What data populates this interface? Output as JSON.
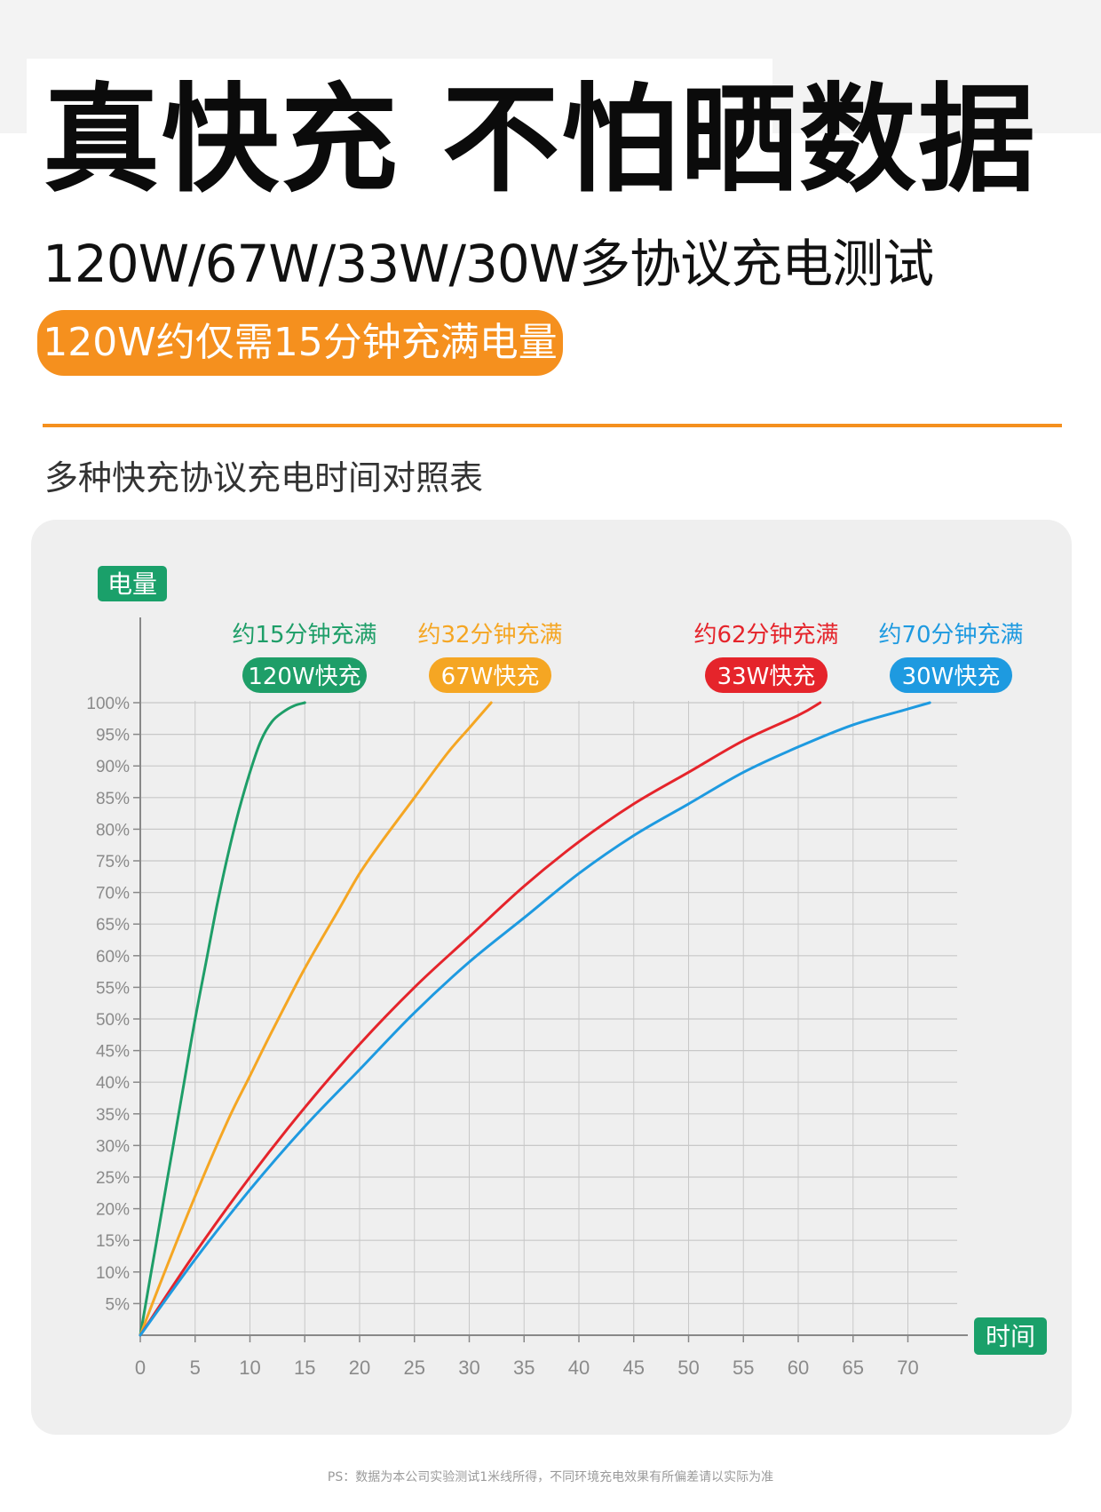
{
  "header": {
    "headline": "真快充 不怕晒数据",
    "subtitle": "120W/67W/33W/30W多协议充电测试",
    "highlight": "120W约仅需15分钟充满电量"
  },
  "chart_title": "多种快充协议充电时间对照表",
  "footnote": "PS：数据为本公司实验测试1米线所得，不同环境充电效果有所偏差请以实际为准",
  "colors": {
    "accent": "#f5901e",
    "panel": "#efefef",
    "axis_badge": "#1aa06a",
    "grid": "#c8c8c8",
    "axis": "#888888"
  },
  "chart_data": {
    "type": "line",
    "ylabel": "电量",
    "xlabel": "时间",
    "xlim": [
      0,
      75
    ],
    "ylim": [
      0,
      100
    ],
    "x_ticks": [
      0,
      5,
      10,
      15,
      20,
      25,
      30,
      35,
      40,
      45,
      50,
      55,
      60,
      65,
      70
    ],
    "y_ticks": [
      5,
      10,
      15,
      20,
      25,
      30,
      35,
      40,
      45,
      50,
      55,
      60,
      65,
      70,
      75,
      80,
      85,
      90,
      95,
      100
    ],
    "y_tick_labels": [
      "5%",
      "10%",
      "15%",
      "20%",
      "25%",
      "30%",
      "35%",
      "40%",
      "45%",
      "50%",
      "55%",
      "60%",
      "65%",
      "70%",
      "75%",
      "80%",
      "85%",
      "90%",
      "95%",
      "100%"
    ],
    "grid": true,
    "series": [
      {
        "name": "120W快充",
        "annotation": "约15分钟充满",
        "color": "#1e9e68",
        "x": [
          0,
          1,
          2,
          3,
          4,
          5,
          6,
          7,
          8,
          9,
          10,
          11,
          12,
          13,
          14,
          15
        ],
        "y": [
          0,
          10,
          20,
          30,
          40,
          50,
          59,
          68,
          76,
          83,
          89,
          94,
          97,
          98.5,
          99.5,
          100
        ]
      },
      {
        "name": "67W快充",
        "annotation": "约32分钟充满",
        "color": "#f5a623",
        "x": [
          0,
          2,
          5,
          8,
          10,
          12,
          15,
          18,
          20,
          22,
          25,
          28,
          30,
          32
        ],
        "y": [
          0,
          9,
          22,
          34,
          41,
          48,
          58,
          67,
          73,
          78,
          85,
          92,
          96,
          100
        ]
      },
      {
        "name": "33W快充",
        "annotation": "约62分钟充满",
        "color": "#e5242b",
        "x": [
          0,
          5,
          10,
          15,
          20,
          25,
          30,
          35,
          40,
          45,
          50,
          55,
          60,
          62
        ],
        "y": [
          0,
          13,
          25,
          36,
          46,
          55,
          63,
          71,
          78,
          84,
          89,
          94,
          98,
          100
        ]
      },
      {
        "name": "30W快充",
        "annotation": "约70分钟充满",
        "color": "#1e9ae0",
        "x": [
          0,
          5,
          10,
          15,
          20,
          25,
          30,
          35,
          40,
          45,
          50,
          55,
          60,
          65,
          70,
          72
        ],
        "y": [
          0,
          12,
          23,
          33,
          42,
          51,
          59,
          66,
          73,
          79,
          84,
          89,
          93,
          96.5,
          99,
          100
        ]
      }
    ]
  }
}
